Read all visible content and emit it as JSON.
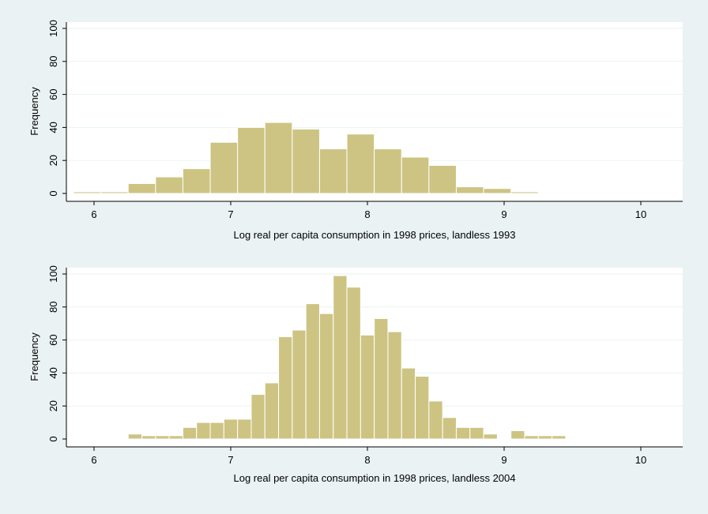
{
  "colors": {
    "background": "#eaf2f3",
    "plot_area": "#ffffff",
    "bar_fill": "#cdc483",
    "bar_edge": "#ffffff",
    "grid": "#eaf2f3",
    "axis": "#000000"
  },
  "chart_data": [
    {
      "type": "bar",
      "variant": "histogram",
      "title": "",
      "xlabel": "Log real per capita consumption in 1998 prices, landless 1993",
      "ylabel": "Frequency",
      "xlim": [
        5.85,
        10.3
      ],
      "ylim": [
        0,
        100
      ],
      "xticks": [
        6,
        7,
        8,
        9,
        10
      ],
      "yticks": [
        0,
        20,
        40,
        60,
        80,
        100
      ],
      "grid": true,
      "bin_width": 0.2,
      "bins": [
        {
          "x0": 5.85,
          "x1": 6.05,
          "count": 1
        },
        {
          "x0": 6.05,
          "x1": 6.25,
          "count": 1
        },
        {
          "x0": 6.25,
          "x1": 6.45,
          "count": 6
        },
        {
          "x0": 6.45,
          "x1": 6.65,
          "count": 10
        },
        {
          "x0": 6.65,
          "x1": 6.85,
          "count": 15
        },
        {
          "x0": 6.85,
          "x1": 7.05,
          "count": 31
        },
        {
          "x0": 7.05,
          "x1": 7.25,
          "count": 40
        },
        {
          "x0": 7.25,
          "x1": 7.45,
          "count": 43
        },
        {
          "x0": 7.45,
          "x1": 7.65,
          "count": 39
        },
        {
          "x0": 7.65,
          "x1": 7.85,
          "count": 27
        },
        {
          "x0": 7.85,
          "x1": 8.05,
          "count": 36
        },
        {
          "x0": 8.05,
          "x1": 8.25,
          "count": 27
        },
        {
          "x0": 8.25,
          "x1": 8.45,
          "count": 22
        },
        {
          "x0": 8.45,
          "x1": 8.65,
          "count": 17
        },
        {
          "x0": 8.65,
          "x1": 8.85,
          "count": 4
        },
        {
          "x0": 8.85,
          "x1": 9.05,
          "count": 3
        },
        {
          "x0": 9.05,
          "x1": 9.25,
          "count": 1
        }
      ]
    },
    {
      "type": "bar",
      "variant": "histogram",
      "title": "",
      "xlabel": "Log real per capita consumption in 1998 prices, landless 2004",
      "ylabel": "Frequency",
      "xlim": [
        5.85,
        10.3
      ],
      "ylim": [
        0,
        100
      ],
      "xticks": [
        6,
        7,
        8,
        9,
        10
      ],
      "yticks": [
        0,
        20,
        40,
        60,
        80,
        100
      ],
      "grid": true,
      "bin_width": 0.1,
      "bins": [
        {
          "x0": 6.25,
          "x1": 6.35,
          "count": 3
        },
        {
          "x0": 6.35,
          "x1": 6.45,
          "count": 2
        },
        {
          "x0": 6.45,
          "x1": 6.55,
          "count": 2
        },
        {
          "x0": 6.55,
          "x1": 6.65,
          "count": 2
        },
        {
          "x0": 6.65,
          "x1": 6.75,
          "count": 7
        },
        {
          "x0": 6.75,
          "x1": 6.85,
          "count": 10
        },
        {
          "x0": 6.85,
          "x1": 6.95,
          "count": 10
        },
        {
          "x0": 6.95,
          "x1": 7.05,
          "count": 12
        },
        {
          "x0": 7.05,
          "x1": 7.15,
          "count": 12
        },
        {
          "x0": 7.15,
          "x1": 7.25,
          "count": 27
        },
        {
          "x0": 7.25,
          "x1": 7.35,
          "count": 34
        },
        {
          "x0": 7.35,
          "x1": 7.45,
          "count": 62
        },
        {
          "x0": 7.45,
          "x1": 7.55,
          "count": 66
        },
        {
          "x0": 7.55,
          "x1": 7.65,
          "count": 82
        },
        {
          "x0": 7.65,
          "x1": 7.75,
          "count": 76
        },
        {
          "x0": 7.75,
          "x1": 7.85,
          "count": 99
        },
        {
          "x0": 7.85,
          "x1": 7.95,
          "count": 92
        },
        {
          "x0": 7.95,
          "x1": 8.05,
          "count": 63
        },
        {
          "x0": 8.05,
          "x1": 8.15,
          "count": 73
        },
        {
          "x0": 8.15,
          "x1": 8.25,
          "count": 65
        },
        {
          "x0": 8.25,
          "x1": 8.35,
          "count": 43
        },
        {
          "x0": 8.35,
          "x1": 8.45,
          "count": 38
        },
        {
          "x0": 8.45,
          "x1": 8.55,
          "count": 23
        },
        {
          "x0": 8.55,
          "x1": 8.65,
          "count": 13
        },
        {
          "x0": 8.65,
          "x1": 8.75,
          "count": 7
        },
        {
          "x0": 8.75,
          "x1": 8.85,
          "count": 7
        },
        {
          "x0": 8.85,
          "x1": 8.95,
          "count": 3
        },
        {
          "x0": 9.05,
          "x1": 9.15,
          "count": 5
        },
        {
          "x0": 9.15,
          "x1": 9.25,
          "count": 2
        },
        {
          "x0": 9.25,
          "x1": 9.35,
          "count": 2
        },
        {
          "x0": 9.35,
          "x1": 9.45,
          "count": 2
        }
      ]
    }
  ]
}
